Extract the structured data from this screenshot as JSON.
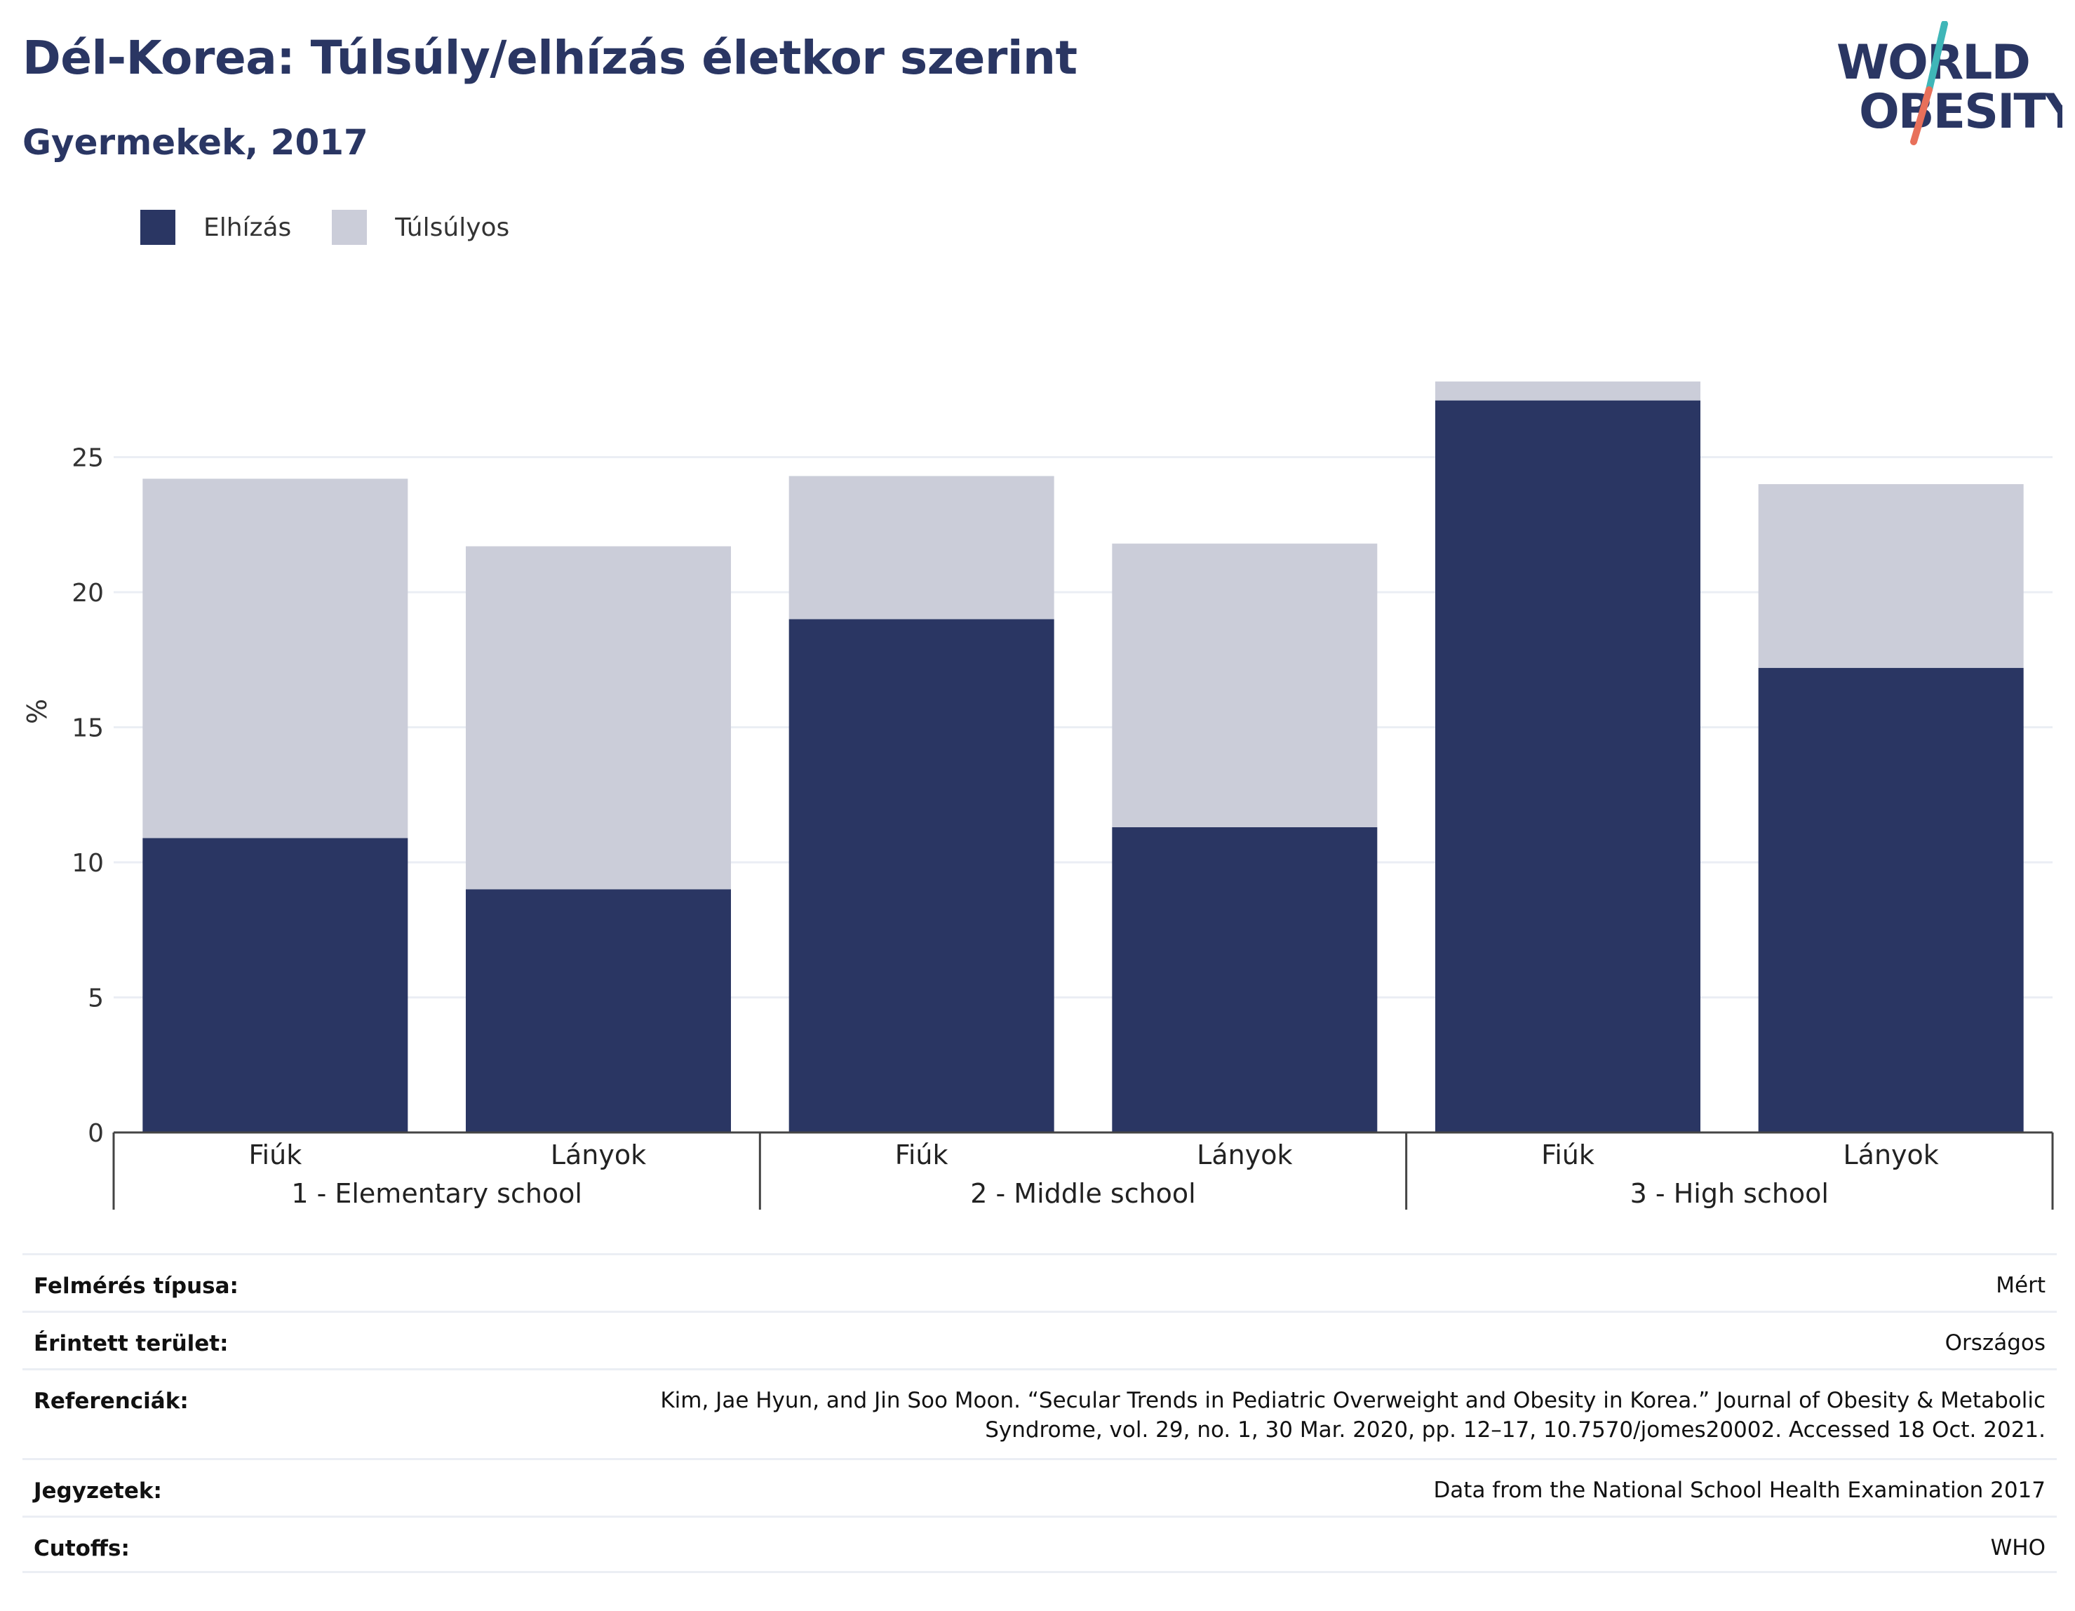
{
  "title": "Dél-Korea: Túlsúly/elhízás életkor szerint",
  "subtitle": "Gyermekek, 2017",
  "logo": {
    "line1": "WORLD",
    "line2": "OBESITY"
  },
  "colors": {
    "obesity": "#2a3663",
    "overweight": "#cbcdd9",
    "text": "#2a3663",
    "grid": "#ebeef4"
  },
  "chart_data": {
    "type": "bar",
    "stacked": true,
    "categories": [
      "Fiúk",
      "Lányok",
      "Fiúk",
      "Lányok",
      "Fiúk",
      "Lányok"
    ],
    "groups": [
      {
        "label": "1 - Elementary school",
        "categories": [
          "Fiúk",
          "Lányok"
        ]
      },
      {
        "label": "2 - Middle school",
        "categories": [
          "Fiúk",
          "Lányok"
        ]
      },
      {
        "label": "3 - High school",
        "categories": [
          "Fiúk",
          "Lányok"
        ]
      }
    ],
    "series": [
      {
        "name": "Elhízás",
        "color": "#2a3663",
        "values": [
          10.9,
          9.0,
          19.0,
          11.3,
          27.1,
          17.2
        ]
      },
      {
        "name": "Túlsúlyos",
        "color": "#cbcdd9",
        "values": [
          13.3,
          12.7,
          5.3,
          10.5,
          0.7,
          6.8
        ]
      }
    ],
    "ylabel": "%",
    "xlabel": "",
    "ylim": [
      0,
      28.5
    ],
    "yticks": [
      0,
      5,
      10,
      15,
      20,
      25
    ],
    "grid": true,
    "legend_position": "top-left"
  },
  "info": [
    {
      "label": "Felmérés típusa:",
      "value": "Mért"
    },
    {
      "label": "Érintett terület:",
      "value": "Országos"
    },
    {
      "label": "Referenciák:",
      "value": "Kim, Jae Hyun, and Jin Soo Moon. “Secular Trends in Pediatric Overweight and Obesity in Korea.” Journal of Obesity & Metabolic Syndrome, vol. 29, no. 1, 30 Mar. 2020, pp. 12–17, 10.7570/jomes20002. Accessed 18 Oct. 2021."
    },
    {
      "label": "Jegyzetek:",
      "value": "Data from the National School Health Examination 2017"
    },
    {
      "label": "Cutoffs:",
      "value": "WHO"
    }
  ]
}
